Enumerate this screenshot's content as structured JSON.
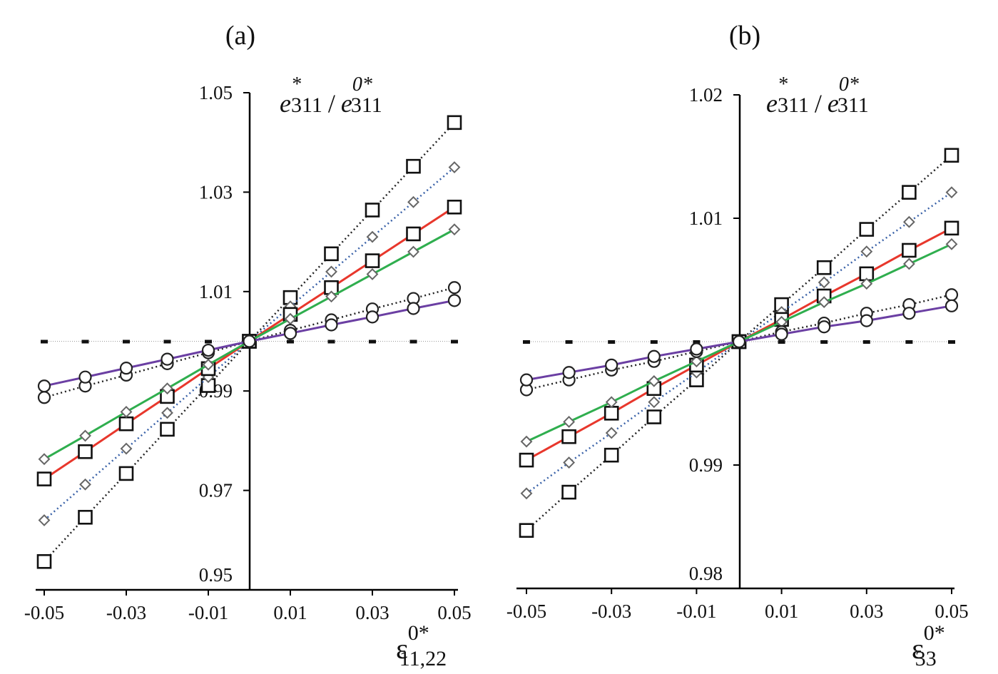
{
  "chart_data": [
    {
      "type": "line",
      "title": "(a)",
      "ylabel": {
        "base": "e",
        "sup": "*",
        "sub": "311",
        "sep": "/",
        "base2": "e",
        "sup2": "0*",
        "sub2": "311"
      },
      "xlabel": {
        "base": "ε",
        "sup": "0*",
        "sub": "11,22"
      },
      "ylim": [
        0.95,
        1.05
      ],
      "xlim": [
        -0.05,
        0.05
      ],
      "yticks": [
        "0.95",
        "0.97",
        "0.99",
        "1.01",
        "1.03",
        "1.05"
      ],
      "xticks": [
        "-0.05",
        "-0.03",
        "-0.01",
        "0.01",
        "0.03",
        "0.05"
      ],
      "x": [
        -0.05,
        -0.04,
        -0.03,
        -0.02,
        -0.01,
        0,
        0.01,
        0.02,
        0.03,
        0.04,
        0.05
      ],
      "series": [
        {
          "values": [
            1,
            1,
            1,
            1,
            1,
            1,
            1,
            1,
            1,
            1,
            1
          ],
          "color": "#999999",
          "line": "dotted",
          "marker": "dash"
        },
        {
          "values": [
            0.9557,
            0.9646,
            0.9734,
            0.9823,
            0.9911,
            1,
            1.0088,
            1.0176,
            1.0264,
            1.0352,
            1.044
          ],
          "color": "#222222",
          "line": "dotted",
          "marker": "square"
        },
        {
          "values": [
            0.964,
            0.9712,
            0.9784,
            0.9856,
            0.9928,
            1,
            1.007,
            1.014,
            1.021,
            1.028,
            1.035
          ],
          "color": "#3a62a8",
          "line": "dotted",
          "marker": "diamond"
        },
        {
          "values": [
            0.9723,
            0.9778,
            0.9834,
            0.9889,
            0.9945,
            1,
            1.0054,
            1.0108,
            1.0162,
            1.0216,
            1.027
          ],
          "color": "#e8372c",
          "line": "solid",
          "marker": "square"
        },
        {
          "values": [
            0.9763,
            0.981,
            0.9858,
            0.9905,
            0.9953,
            1,
            1.0045,
            1.009,
            1.0135,
            1.018,
            1.0225
          ],
          "color": "#2fae4e",
          "line": "solid",
          "marker": "diamond"
        },
        {
          "values": [
            0.9887,
            0.991,
            0.9932,
            0.9955,
            0.9977,
            1,
            1.0022,
            1.0043,
            1.0065,
            1.0086,
            1.0108
          ],
          "color": "#222222",
          "line": "dotted",
          "marker": "circle"
        },
        {
          "values": [
            0.991,
            0.9928,
            0.9946,
            0.9964,
            0.9982,
            1,
            1.0016,
            1.0033,
            1.0049,
            1.0066,
            1.0082
          ],
          "color": "#6b3fa3",
          "line": "solid",
          "marker": "circle"
        }
      ]
    },
    {
      "type": "line",
      "title": "(b)",
      "ylabel": {
        "base": "e",
        "sup": "*",
        "sub": "311",
        "sep": "/",
        "base2": "e",
        "sup2": "0*",
        "sub2": "311"
      },
      "xlabel": {
        "base": "ε",
        "sup": "0*",
        "sub": "33"
      },
      "ylim": [
        0.98,
        1.02
      ],
      "xlim": [
        -0.05,
        0.05
      ],
      "yticks": [
        "0.98",
        "0.99",
        "1",
        "1.01",
        "1.02"
      ],
      "xticks": [
        "-0.05",
        "-0.03",
        "-0.01",
        "0.01",
        "0.03",
        "0.05"
      ],
      "x": [
        -0.05,
        -0.04,
        -0.03,
        -0.02,
        -0.01,
        0,
        0.01,
        0.02,
        0.03,
        0.04,
        0.05
      ],
      "series": [
        {
          "values": [
            1,
            1,
            1,
            1,
            1,
            1,
            1,
            1,
            1,
            1,
            1
          ],
          "color": "#999999",
          "line": "dotted",
          "marker": "dash"
        },
        {
          "values": [
            0.9847,
            0.9878,
            0.9908,
            0.9939,
            0.9969,
            1,
            1.003,
            1.006,
            1.0091,
            1.0121,
            1.0151
          ],
          "color": "#222222",
          "line": "dotted",
          "marker": "square"
        },
        {
          "values": [
            0.9877,
            0.9902,
            0.9926,
            0.9951,
            0.9975,
            1,
            1.0024,
            1.0048,
            1.0073,
            1.0097,
            1.0121
          ],
          "color": "#3a62a8",
          "line": "dotted",
          "marker": "diamond"
        },
        {
          "values": [
            0.9904,
            0.9923,
            0.9942,
            0.9962,
            0.9981,
            1,
            1.0018,
            1.0037,
            1.0055,
            1.0074,
            1.0092
          ],
          "color": "#e8372c",
          "line": "solid",
          "marker": "square"
        },
        {
          "values": [
            0.9919,
            0.9935,
            0.9951,
            0.9968,
            0.9984,
            1,
            1.0016,
            1.0032,
            1.0047,
            1.0063,
            1.0079
          ],
          "color": "#2fae4e",
          "line": "solid",
          "marker": "diamond"
        },
        {
          "values": [
            0.9961,
            0.9969,
            0.9977,
            0.9984,
            0.9992,
            1,
            1.0008,
            1.0015,
            1.0023,
            1.003,
            1.0038
          ],
          "color": "#222222",
          "line": "dotted",
          "marker": "circle"
        },
        {
          "values": [
            0.9969,
            0.9975,
            0.9981,
            0.9988,
            0.9994,
            1,
            1.0006,
            1.0012,
            1.0017,
            1.0023,
            1.0029
          ],
          "color": "#6b3fa3",
          "line": "solid",
          "marker": "circle"
        }
      ]
    }
  ]
}
